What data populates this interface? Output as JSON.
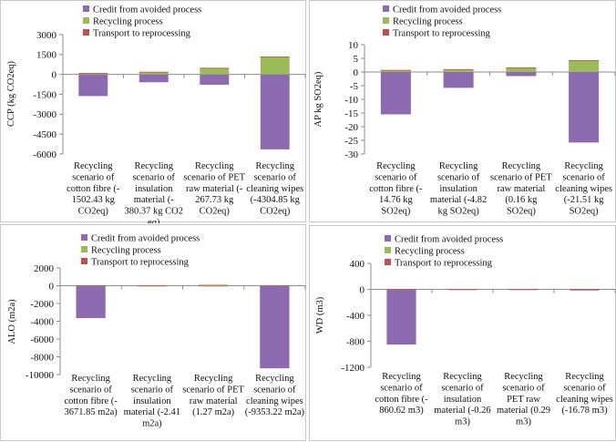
{
  "colors": {
    "credit": "#8c6bb1",
    "recycling": "#9bbb59",
    "transport": "#c0504d"
  },
  "legend": [
    "Credit from avoided process",
    "Recycling process",
    "Transport to reprocessing"
  ],
  "chart_data": [
    {
      "type": "bar",
      "stacked": true,
      "title": "",
      "ylabel": "CCP (kg CO2eq)",
      "ylim": [
        -6000,
        3000
      ],
      "yticks": [
        3000,
        1500,
        0,
        -1500,
        -3000,
        -4500,
        -6000
      ],
      "grid": false,
      "legend_position": "top",
      "categories": [
        [
          "Recycling",
          "scenario of",
          "cotton fibre (-",
          "1502.43 kg",
          "CO2eq)"
        ],
        [
          "Recycling",
          "scenario of",
          "insulation",
          "material (-",
          "380.37 kg CO2",
          "eq)"
        ],
        [
          "Recycling",
          "scenario of PET",
          "raw material (-",
          "267.73 kg",
          "CO2eq)"
        ],
        [
          "Recycling",
          "scenario of",
          "cleaning wipes",
          "(-4304.85 kg",
          "CO2eq)"
        ]
      ],
      "series": [
        {
          "name": "Credit from avoided process",
          "values": [
            -1630,
            -590,
            -780,
            -5650
          ]
        },
        {
          "name": "Recycling process",
          "values": [
            100,
            180,
            480,
            1330
          ]
        },
        {
          "name": "Transport to reprocessing",
          "values": [
            20,
            20,
            20,
            20
          ]
        }
      ]
    },
    {
      "type": "bar",
      "stacked": true,
      "title": "",
      "ylabel": "AP kg SO2eq)",
      "ylim": [
        -30,
        10
      ],
      "yticks": [
        10,
        5,
        0,
        -5,
        -10,
        -15,
        -20,
        -25,
        -30
      ],
      "grid": false,
      "legend_position": "top",
      "categories": [
        [
          "Recycling",
          "scenario of",
          "cotton fibre (-",
          "14.76 kg",
          "SO2eq)"
        ],
        [
          "Recycling",
          "scenario of",
          "insulation",
          "material (-4.82",
          "kg SO2eq)"
        ],
        [
          "Recycling",
          "scenario of PET",
          "raw material",
          "(0.16 kg",
          "SO2eq)"
        ],
        [
          "Recycling",
          "scenario of",
          "cleaning wipes",
          "(-21.51 kg",
          "SO2eq)"
        ]
      ],
      "series": [
        {
          "name": "Credit from avoided process",
          "values": [
            -15.5,
            -5.8,
            -1.5,
            -25.8
          ]
        },
        {
          "name": "Recycling process",
          "values": [
            0.7,
            1.0,
            1.6,
            4.3
          ]
        },
        {
          "name": "Transport to reprocessing",
          "values": [
            0.05,
            0.05,
            0.05,
            0.05
          ]
        }
      ]
    },
    {
      "type": "bar",
      "stacked": true,
      "title": "",
      "ylabel": "ALO (m2a)",
      "ylim": [
        -10000,
        2000
      ],
      "yticks": [
        2000,
        0,
        -2000,
        -4000,
        -6000,
        -8000,
        -10000
      ],
      "grid": false,
      "legend_position": "top",
      "categories": [
        [
          "Recycling",
          "scenario of",
          "cotton fibre (-",
          "3671.85 m2a)"
        ],
        [
          "Recycling",
          "scenario of",
          "insulation",
          "material (-2.41",
          "m2a)"
        ],
        [
          "Recycling",
          "scenario of PET",
          "raw material",
          "(1.27 m2a)"
        ],
        [
          "Recycling",
          "scenario of",
          "cleaning wipes",
          "(-9353.22 m2a)"
        ]
      ],
      "series": [
        {
          "name": "Credit from avoided process",
          "values": [
            -3650,
            -5,
            0,
            -9300
          ]
        },
        {
          "name": "Recycling process",
          "values": [
            10,
            20,
            20,
            30
          ]
        },
        {
          "name": "Transport to reprocessing",
          "values": [
            20,
            40,
            80,
            30
          ]
        }
      ]
    },
    {
      "type": "bar",
      "stacked": true,
      "title": "",
      "ylabel": "WD (m3)",
      "ylim": [
        -1200,
        400
      ],
      "yticks": [
        400,
        0,
        -400,
        -800,
        -1200
      ],
      "grid": false,
      "legend_position": "top",
      "categories": [
        [
          "Recycling",
          "scenario of",
          "cotton fibre (-",
          "860.62 m3)"
        ],
        [
          "Recycling",
          "scenario of",
          "insulation",
          "material (-0.26",
          "m3)"
        ],
        [
          "Recycling",
          "scenario of",
          "PET raw",
          "material (0.29",
          "m3)"
        ],
        [
          "Recycling",
          "scenario of",
          "cleaning wipes",
          "(-16.78 m3)"
        ]
      ],
      "series": [
        {
          "name": "Credit from avoided process",
          "values": [
            -850,
            -8,
            -3,
            -18
          ]
        },
        {
          "name": "Recycling process",
          "values": [
            3,
            3,
            3,
            3
          ]
        },
        {
          "name": "Transport to reprocessing",
          "values": [
            1,
            1,
            1,
            1
          ]
        }
      ]
    }
  ]
}
